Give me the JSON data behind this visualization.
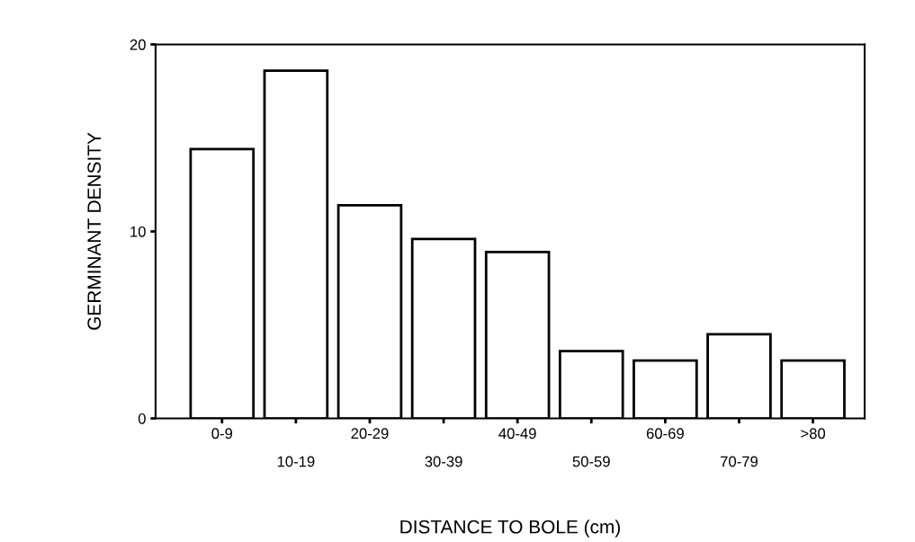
{
  "chart_data": {
    "type": "bar",
    "xlabel": "DISTANCE TO BOLE (cm)",
    "ylabel": "GERMINANT DENSITY",
    "categories": [
      "0-9",
      "10-19",
      "20-29",
      "30-39",
      "40-49",
      "50-59",
      "60-69",
      "70-79",
      ">80"
    ],
    "values": [
      14.4,
      18.6,
      11.4,
      9.6,
      8.9,
      3.6,
      3.1,
      4.5,
      3.1
    ],
    "color": "#ffffff",
    "ylim": [
      0,
      20
    ],
    "yticks": [
      0,
      10,
      20
    ],
    "grid": false
  }
}
